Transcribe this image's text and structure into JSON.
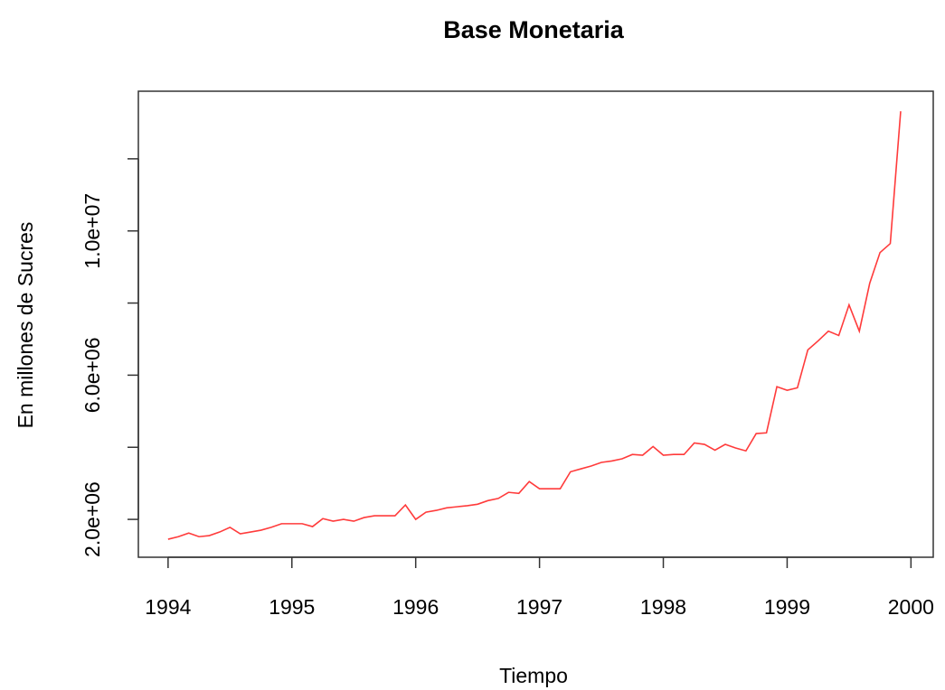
{
  "chart_data": {
    "type": "line",
    "title": "Base Monetaria",
    "x_label": "Tiempo",
    "y_label": "En millones de Sucres",
    "x": [
      1994.0,
      1994.083,
      1994.167,
      1994.25,
      1994.333,
      1994.417,
      1994.5,
      1994.583,
      1994.667,
      1994.75,
      1994.833,
      1994.917,
      1995.0,
      1995.083,
      1995.167,
      1995.25,
      1995.333,
      1995.417,
      1995.5,
      1995.583,
      1995.667,
      1995.75,
      1995.833,
      1995.917,
      1996.0,
      1996.083,
      1996.167,
      1996.25,
      1996.333,
      1996.417,
      1996.5,
      1996.583,
      1996.667,
      1996.75,
      1996.833,
      1996.917,
      1997.0,
      1997.083,
      1997.167,
      1997.25,
      1997.333,
      1997.417,
      1997.5,
      1997.583,
      1997.667,
      1997.75,
      1997.833,
      1997.917,
      1998.0,
      1998.083,
      1998.167,
      1998.25,
      1998.333,
      1998.417,
      1998.5,
      1998.583,
      1998.667,
      1998.75,
      1998.833,
      1998.917,
      1999.0,
      1999.083,
      1999.167,
      1999.25,
      1999.333,
      1999.417,
      1999.5,
      1999.583,
      1999.667,
      1999.75,
      1999.833,
      1999.917
    ],
    "series": [
      {
        "color": "#ff3b3b",
        "values": [
          1450000,
          1520000,
          1620000,
          1520000,
          1550000,
          1650000,
          1780000,
          1600000,
          1650000,
          1700000,
          1780000,
          1880000,
          1880000,
          1880000,
          1800000,
          2020000,
          1950000,
          2000000,
          1950000,
          2050000,
          2100000,
          2100000,
          2100000,
          2400000,
          2000000,
          2200000,
          2250000,
          2320000,
          2350000,
          2380000,
          2420000,
          2520000,
          2580000,
          2750000,
          2720000,
          3050000,
          2850000,
          2850000,
          2850000,
          3320000,
          3400000,
          3480000,
          3580000,
          3620000,
          3680000,
          3800000,
          3780000,
          4020000,
          3780000,
          3800000,
          3800000,
          4120000,
          4080000,
          3920000,
          4080000,
          3980000,
          3900000,
          4380000,
          4400000,
          5680000,
          5580000,
          5650000,
          6700000,
          6950000,
          7220000,
          7100000,
          7950000,
          7220000,
          8550000,
          9400000,
          9650000,
          13320000
        ]
      }
    ],
    "xlim": [
      1993.76,
      2000.18
    ],
    "xticks": [
      1994,
      1995,
      1996,
      1997,
      1998,
      1999,
      2000
    ],
    "ylim": [
      950000,
      13875000
    ],
    "yticks": [
      {
        "value": 2000000,
        "label": "2.0e+06"
      },
      {
        "value": 4000000,
        "label": null
      },
      {
        "value": 6000000,
        "label": "6.0e+06"
      },
      {
        "value": 8000000,
        "label": null
      },
      {
        "value": 10000000,
        "label": "1.0e+07"
      },
      {
        "value": 12000000,
        "label": null
      }
    ]
  }
}
